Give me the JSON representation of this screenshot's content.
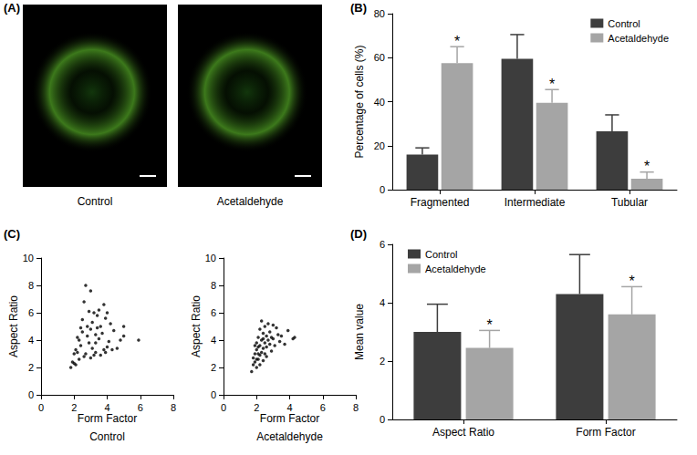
{
  "images": {
    "panel": "(A)",
    "captions": [
      "Control",
      "Acetaldehyde"
    ]
  },
  "chart_data": [
    {
      "panel": "(B)",
      "type": "bar",
      "ylabel": "Percentage of cells (%)",
      "categories": [
        "Fragmented",
        "Intermediate",
        "Tubular"
      ],
      "ylim": [
        0,
        80
      ],
      "yticks": [
        0,
        20,
        40,
        60,
        80
      ],
      "grid": false,
      "legend": "upper right",
      "series": [
        {
          "name": "Control",
          "color": "#3d3d3d",
          "values": [
            16,
            59.5,
            26.5
          ],
          "errors": [
            3,
            11,
            7.5
          ]
        },
        {
          "name": "Acetaldehyde",
          "color": "#a5a5a5",
          "values": [
            57.5,
            39.5,
            5
          ],
          "errors": [
            7.5,
            6,
            3
          ],
          "annotations": [
            "*",
            "*",
            "*"
          ]
        }
      ]
    },
    {
      "panel": "(C)",
      "type": "scatter",
      "title": "Control",
      "xlabel": "Form Factor",
      "ylabel": "Aspect Ratio",
      "xlim": [
        0,
        8
      ],
      "xticks": [
        0,
        2,
        4,
        6,
        8
      ],
      "ylim": [
        0,
        10
      ],
      "yticks": [
        0,
        2,
        4,
        6,
        8,
        10
      ],
      "grid": false,
      "color": "#000000",
      "x": [
        1.8,
        1.9,
        2.0,
        2.0,
        2.1,
        2.2,
        2.3,
        2.3,
        2.4,
        2.5,
        2.5,
        2.6,
        2.6,
        2.7,
        2.7,
        2.8,
        2.8,
        2.9,
        3.0,
        3.0,
        3.0,
        3.1,
        3.1,
        3.2,
        3.2,
        3.3,
        3.3,
        3.4,
        3.5,
        3.5,
        3.6,
        3.6,
        3.7,
        3.8,
        3.8,
        3.9,
        4.0,
        4.0,
        4.1,
        4.2,
        4.3,
        4.4,
        4.6,
        4.8,
        5.0,
        5.0,
        5.9,
        2.4,
        2.9,
        3.4,
        2.2,
        2.1,
        3.9,
        3.3
      ],
      "y": [
        2.0,
        2.4,
        2.3,
        3.0,
        3.3,
        4.2,
        4.0,
        2.6,
        3.6,
        4.6,
        5.5,
        2.8,
        6.8,
        8.0,
        3.0,
        4.3,
        5.0,
        3.8,
        2.7,
        7.6,
        4.8,
        5.3,
        3.4,
        2.9,
        6.0,
        4.4,
        3.1,
        5.8,
        4.1,
        6.2,
        2.9,
        5.0,
        4.5,
        3.3,
        6.6,
        5.6,
        3.5,
        6.0,
        3.9,
        5.2,
        3.3,
        4.7,
        3.4,
        4.0,
        5.0,
        4.3,
        4.0,
        4.9,
        6.1,
        4.9,
        3.1,
        2.2,
        3.1,
        3.8
      ]
    },
    {
      "type": "scatter",
      "title": "Acetaldehyde",
      "xlabel": "Form Factor",
      "ylabel": "Aspect Ratio",
      "xlim": [
        0,
        8
      ],
      "xticks": [
        0,
        2,
        4,
        6,
        8
      ],
      "ylim": [
        0,
        10
      ],
      "yticks": [
        0,
        2,
        4,
        6,
        8,
        10
      ],
      "grid": false,
      "color": "#000000",
      "x": [
        1.7,
        1.8,
        1.8,
        1.9,
        1.9,
        2.0,
        2.0,
        2.0,
        2.1,
        2.1,
        2.1,
        2.2,
        2.2,
        2.2,
        2.3,
        2.3,
        2.3,
        2.4,
        2.4,
        2.4,
        2.5,
        2.5,
        2.5,
        2.6,
        2.6,
        2.7,
        2.7,
        2.8,
        2.8,
        2.9,
        3.0,
        3.0,
        3.1,
        3.2,
        3.3,
        3.5,
        3.7,
        3.9,
        4.2,
        4.3,
        2.0,
        1.9,
        2.2,
        2.6,
        2.4,
        2.1,
        2.9,
        3.4
      ],
      "y": [
        1.7,
        2.2,
        2.7,
        2.4,
        3.0,
        2.0,
        3.3,
        3.8,
        2.6,
        3.5,
        4.2,
        2.9,
        3.6,
        4.8,
        3.1,
        4.0,
        5.4,
        3.4,
        4.5,
        2.5,
        3.8,
        5.0,
        3.0,
        4.3,
        3.5,
        4.0,
        5.2,
        3.7,
        4.6,
        3.2,
        4.1,
        5.1,
        3.6,
        4.9,
        4.4,
        4.3,
        3.7,
        4.7,
        4.1,
        4.2,
        2.6,
        3.6,
        2.2,
        2.8,
        4.1,
        3.0,
        4.2,
        3.9
      ]
    },
    {
      "panel": "(D)",
      "type": "bar",
      "ylabel": "Mean value",
      "categories": [
        "Aspect Ratio",
        "Form Factor"
      ],
      "ylim": [
        0,
        6
      ],
      "yticks": [
        0,
        2,
        4,
        6
      ],
      "grid": false,
      "legend": "upper left",
      "series": [
        {
          "name": "Control",
          "color": "#3d3d3d",
          "values": [
            3.0,
            4.3
          ],
          "errors": [
            0.95,
            1.35
          ]
        },
        {
          "name": "Acetaldehyde",
          "color": "#a5a5a5",
          "values": [
            2.45,
            3.6
          ],
          "errors": [
            0.6,
            0.95
          ],
          "annotations": [
            "*",
            "*"
          ]
        }
      ]
    }
  ]
}
